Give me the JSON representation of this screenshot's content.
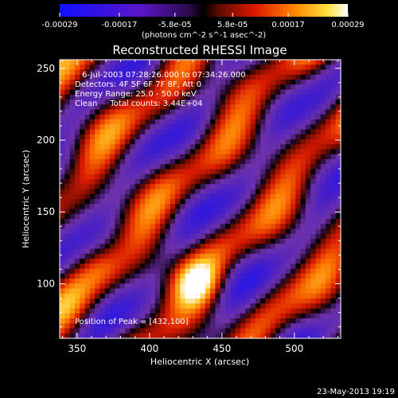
{
  "chart_data": {
    "type": "heatmap",
    "title": "Reconstructed RHESSI Image",
    "xlabel": "Heliocentric X (arcsec)",
    "ylabel": "Heliocentric Y (arcsec)",
    "xlim": [
      338,
      532
    ],
    "ylim": [
      62,
      256
    ],
    "x_ticks": [
      350,
      400,
      450,
      500
    ],
    "y_ticks": [
      100,
      150,
      200,
      250
    ],
    "colorbar": {
      "ticks": [
        "-0.00029",
        "-0.00017",
        "-5.8e-05",
        "5.8e-05",
        "0.00017",
        "0.00029"
      ],
      "tick_values": [
        -0.00029,
        -0.00017,
        -5.8e-05,
        5.8e-05,
        0.00017,
        0.00029
      ],
      "range": [
        -0.00029,
        0.00029
      ],
      "unit_label": "(photons cm^-2 s^-1 asec^-2)"
    },
    "annotations": [
      "6-Jul-2003 07:28:26.000 to 07:34:26.000",
      "Detectors: 4F 5F 6F 7F 8F, Att 0",
      "Energy Range: 25.0 - 50.0 keV",
      "Clean     Total counts: 3.44E+04"
    ],
    "peak_label": "Position of Peak = [432,100]",
    "peak": [
      432,
      100
    ],
    "grid": false
  },
  "footer": {
    "timestamp": "23-May-2013 19:19"
  }
}
